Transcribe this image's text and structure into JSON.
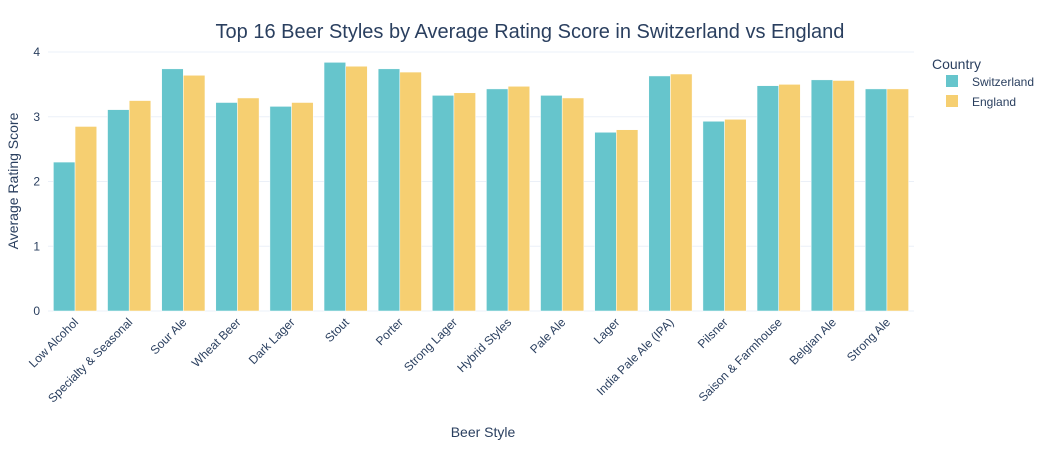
{
  "chart_data": {
    "type": "bar",
    "title": "Top 16 Beer Styles by Average Rating Score in Switzerland vs England",
    "xlabel": "Beer Style",
    "ylabel": "Average Rating Score",
    "ylim": [
      0,
      4
    ],
    "yticks": [
      0,
      1,
      2,
      3,
      4
    ],
    "grid": true,
    "legend": {
      "title": "Country",
      "placement": "top-right"
    },
    "categories": [
      "Low Alcohol",
      "Specialty & Seasonal",
      "Sour Ale",
      "Wheat Beer",
      "Dark Lager",
      "Stout",
      "Porter",
      "Strong Lager",
      "Hybrid Styles",
      "Pale Ale",
      "Lager",
      "India Pale Ale (IPA)",
      "Pilsner",
      "Saison & Farmhouse",
      "Belgian Ale",
      "Strong Ale"
    ],
    "series": [
      {
        "name": "Switzerland",
        "color": "#66c5cc",
        "values": [
          2.3,
          3.11,
          3.74,
          3.22,
          3.16,
          3.84,
          3.74,
          3.33,
          3.43,
          3.33,
          2.76,
          3.63,
          2.93,
          3.48,
          3.57,
          3.43
        ]
      },
      {
        "name": "England",
        "color": "#f6cf71",
        "values": [
          2.85,
          3.25,
          3.64,
          3.29,
          3.22,
          3.78,
          3.69,
          3.37,
          3.47,
          3.29,
          2.8,
          3.66,
          2.96,
          3.5,
          3.56,
          3.43
        ]
      }
    ]
  }
}
